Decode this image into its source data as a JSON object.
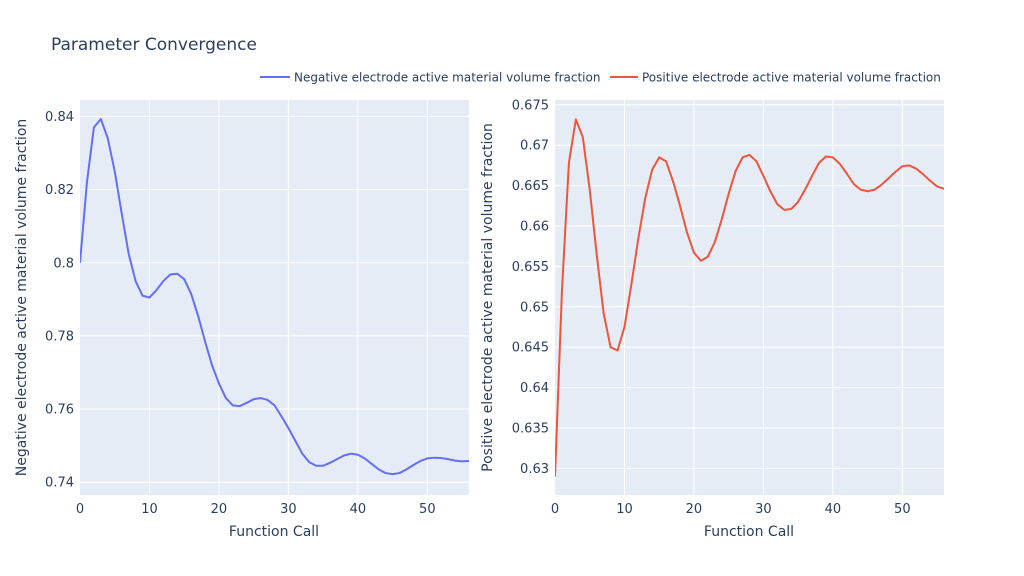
{
  "chart_data": {
    "title": "Parameter Convergence",
    "type": "line",
    "legend": {
      "placement": "top",
      "entries": [
        {
          "label": "Negative electrode active material volume fraction",
          "color": "#636efa"
        },
        {
          "label": "Positive electrode active material volume fraction",
          "color": "#ef553b"
        }
      ]
    },
    "plot_background": "#e5ecf6",
    "grid": true,
    "panels": [
      {
        "series_name": "Negative electrode active material volume fraction",
        "color": "#636efa",
        "xlabel": "Function Call",
        "ylabel": "Negative electrode active material volume fraction",
        "xlim": [
          0,
          56
        ],
        "ylim": [
          0.7365,
          0.8445
        ],
        "xticks": [
          0,
          10,
          20,
          30,
          40,
          50
        ],
        "xtick_labels": [
          "0",
          "10",
          "20",
          "30",
          "40",
          "50"
        ],
        "yticks": [
          0.74,
          0.76,
          0.78,
          0.8,
          0.82,
          0.84
        ],
        "ytick_labels": [
          "0.74",
          "0.76",
          "0.78",
          "0.8",
          "0.82",
          "0.84"
        ],
        "x": [
          0,
          1,
          2,
          3,
          4,
          5,
          6,
          7,
          8,
          9,
          10,
          11,
          12,
          13,
          14,
          15,
          16,
          17,
          18,
          19,
          20,
          21,
          22,
          23,
          24,
          25,
          26,
          27,
          28,
          29,
          30,
          31,
          32,
          33,
          34,
          35,
          36,
          37,
          38,
          39,
          40,
          41,
          42,
          43,
          44,
          45,
          46,
          47,
          48,
          49,
          50,
          51,
          52,
          53,
          54,
          55,
          56
        ],
        "y": [
          0.8,
          0.822,
          0.837,
          0.8393,
          0.834,
          0.825,
          0.8135,
          0.8025,
          0.795,
          0.791,
          0.7905,
          0.7925,
          0.795,
          0.7968,
          0.797,
          0.7955,
          0.7915,
          0.7855,
          0.7785,
          0.772,
          0.767,
          0.763,
          0.761,
          0.7608,
          0.7617,
          0.7627,
          0.763,
          0.7625,
          0.761,
          0.758,
          0.7548,
          0.7513,
          0.7478,
          0.7455,
          0.7445,
          0.7445,
          0.7453,
          0.7463,
          0.7473,
          0.7478,
          0.7475,
          0.7465,
          0.745,
          0.7435,
          0.7425,
          0.7422,
          0.7425,
          0.7435,
          0.7447,
          0.7458,
          0.7465,
          0.7467,
          0.7466,
          0.7463,
          0.7459,
          0.7457,
          0.7458
        ]
      },
      {
        "series_name": "Positive electrode active material volume fraction",
        "color": "#ef553b",
        "xlabel": "Function Call",
        "ylabel": "Positive electrode active material volume fraction",
        "xlim": [
          0,
          56
        ],
        "ylim": [
          0.6267,
          0.6756
        ],
        "xticks": [
          0,
          10,
          20,
          30,
          40,
          50
        ],
        "xtick_labels": [
          "0",
          "10",
          "20",
          "30",
          "40",
          "50"
        ],
        "yticks": [
          0.63,
          0.635,
          0.64,
          0.645,
          0.65,
          0.655,
          0.66,
          0.665,
          0.67,
          0.675
        ],
        "ytick_labels": [
          "0.63",
          "0.635",
          "0.64",
          "0.645",
          "0.65",
          "0.655",
          "0.66",
          "0.665",
          "0.67",
          "0.675"
        ],
        "x": [
          0,
          1,
          2,
          3,
          4,
          5,
          6,
          7,
          8,
          9,
          10,
          11,
          12,
          13,
          14,
          15,
          16,
          17,
          18,
          19,
          20,
          21,
          22,
          23,
          24,
          25,
          26,
          27,
          28,
          29,
          30,
          31,
          32,
          33,
          34,
          35,
          36,
          37,
          38,
          39,
          40,
          41,
          42,
          43,
          44,
          45,
          46,
          47,
          48,
          49,
          50,
          51,
          52,
          53,
          54,
          55,
          56
        ],
        "y": [
          0.629,
          0.652,
          0.6678,
          0.6732,
          0.671,
          0.6645,
          0.6565,
          0.6492,
          0.645,
          0.6446,
          0.6475,
          0.6528,
          0.6585,
          0.6635,
          0.667,
          0.6685,
          0.668,
          0.6655,
          0.6625,
          0.6592,
          0.6567,
          0.6557,
          0.6562,
          0.658,
          0.6608,
          0.664,
          0.6668,
          0.6685,
          0.6688,
          0.668,
          0.6662,
          0.6643,
          0.6627,
          0.662,
          0.6621,
          0.663,
          0.6645,
          0.6662,
          0.6678,
          0.6686,
          0.6685,
          0.6677,
          0.6665,
          0.6652,
          0.6645,
          0.6643,
          0.6645,
          0.6651,
          0.6659,
          0.6667,
          0.6674,
          0.6675,
          0.6671,
          0.6664,
          0.6656,
          0.6649,
          0.6646
        ]
      }
    ]
  }
}
